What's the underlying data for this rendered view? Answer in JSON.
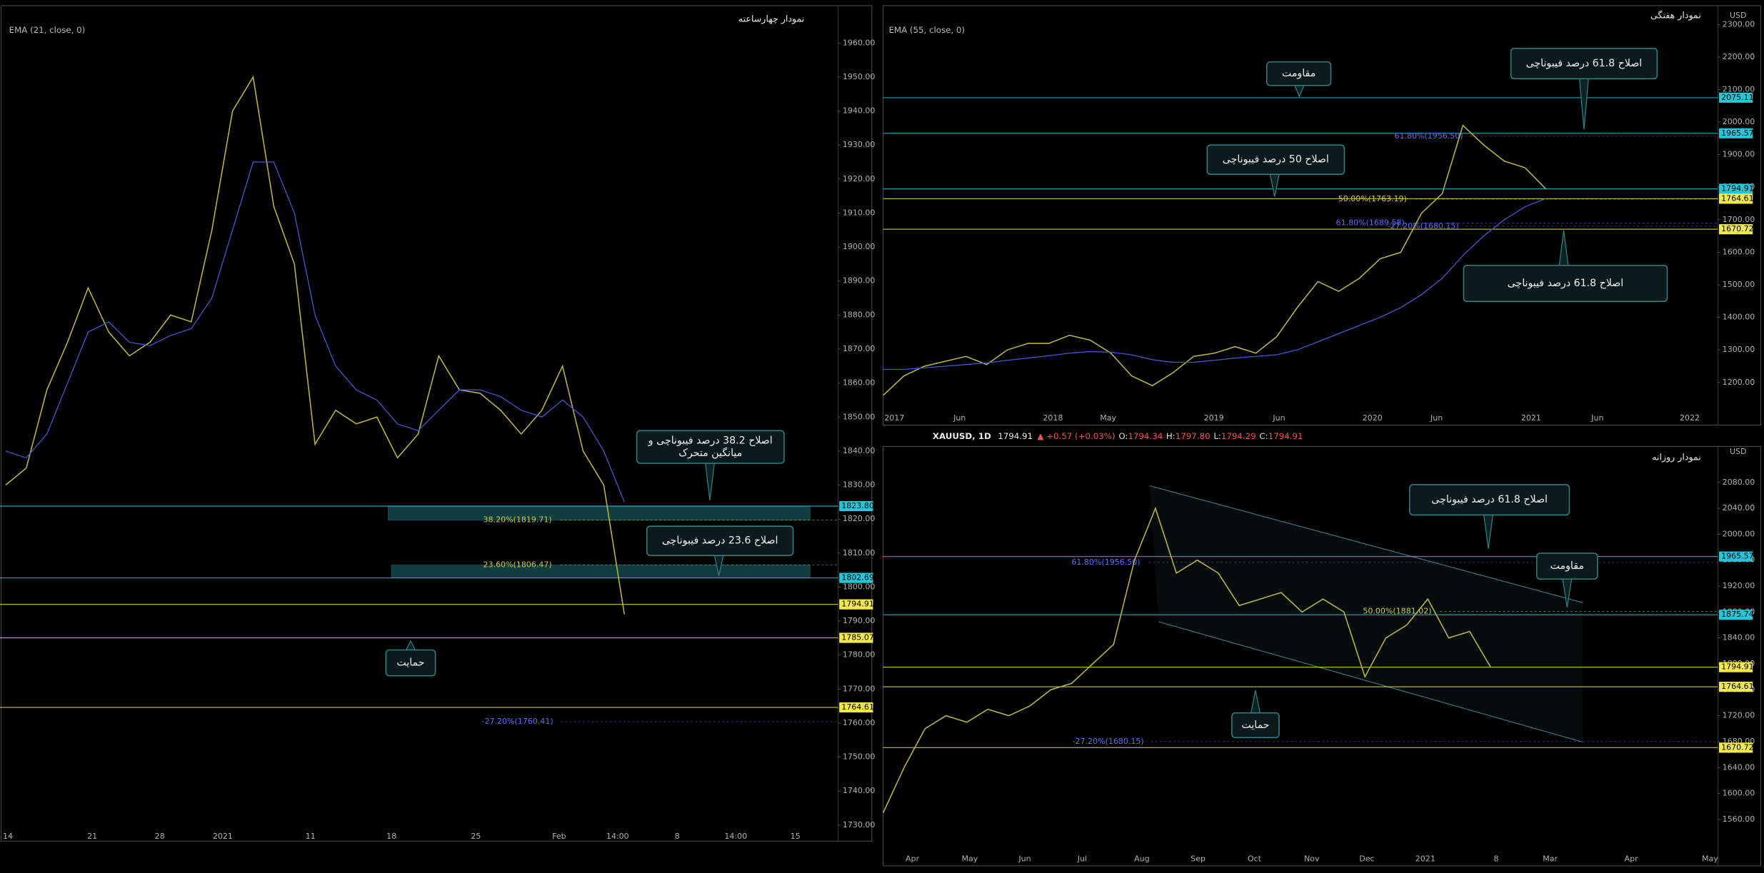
{
  "symbol_bar": {
    "symbol": "XAUUSD, 1D",
    "last": "1794.91",
    "change": "▲ +0.57 (+0.03%)",
    "ohlc": [
      {
        "label": "O:",
        "value": "1794.34"
      },
      {
        "label": "H:",
        "value": "1797.80"
      },
      {
        "label": "L:",
        "value": "1794.29"
      },
      {
        "label": "C:",
        "value": "1794.91"
      }
    ]
  },
  "chart_data": [
    {
      "type": "line",
      "title": "نمودار چهارساعته",
      "x_labels": [
        "14",
        "21",
        "28",
        "2021",
        "11",
        "18",
        "25",
        "Feb",
        "14:00",
        "8",
        "14:00",
        "15"
      ],
      "series": [
        {
          "color": "#b8b444",
          "values": [
            1830,
            1835,
            1858,
            1872,
            1888,
            1875,
            1868,
            1872,
            1880,
            1878,
            1905,
            1940,
            1950,
            1912,
            1895,
            1842,
            1852,
            1848,
            1850,
            1838,
            1845,
            1868,
            1858,
            1857,
            1852,
            1845,
            1852,
            1865,
            1840,
            1830,
            1792
          ]
        },
        {
          "name": "EMA (21, close, 0)",
          "color": "#4a56d0",
          "values": [
            1840,
            1838,
            1845,
            1860,
            1875,
            1878,
            1872,
            1871,
            1874,
            1876,
            1885,
            1905,
            1925,
            1925,
            1910,
            1880,
            1865,
            1858,
            1855,
            1848,
            1846,
            1852,
            1858,
            1858,
            1856,
            1852,
            1850,
            1855,
            1850,
            1840,
            1825
          ]
        }
      ],
      "ylim": [
        1729.6,
        1971
      ],
      "yticks": [
        {
          "value": 1730,
          "label": "1730.00"
        },
        {
          "value": 1740,
          "label": "1740.00"
        },
        {
          "value": 1750,
          "label": "1750.00"
        },
        {
          "value": 1760,
          "label": "1760.00"
        },
        {
          "value": 1770,
          "label": "1770.00"
        },
        {
          "value": 1780,
          "label": "1780.00"
        },
        {
          "value": 1790,
          "label": "1790.00"
        },
        {
          "value": 1800,
          "label": "1800.00"
        },
        {
          "value": 1810,
          "label": "1810.00"
        },
        {
          "value": 1820,
          "label": "1820.00"
        },
        {
          "value": 1830,
          "label": "1830.00"
        },
        {
          "value": 1840,
          "label": "1840.00"
        },
        {
          "value": 1850,
          "label": "1850.00"
        },
        {
          "value": 1860,
          "label": "1860.00"
        },
        {
          "value": 1870,
          "label": "1870.00"
        },
        {
          "value": 1880,
          "label": "1880.00"
        },
        {
          "value": 1890,
          "label": "1890.00"
        },
        {
          "value": 1900,
          "label": "1900.00"
        },
        {
          "value": 1910,
          "label": "1910.00"
        },
        {
          "value": 1920,
          "label": "1920.00"
        },
        {
          "value": 1930,
          "label": "1930.00"
        },
        {
          "value": 1940,
          "label": "1940.00"
        },
        {
          "value": 1950,
          "label": "1950.00"
        },
        {
          "value": 1960,
          "label": "1960.00"
        }
      ],
      "levels": [
        {
          "value": 1823.8,
          "label": "1823.80",
          "color": "#26c6da"
        },
        {
          "value": 1802.69,
          "label": "1802.69",
          "color": "#26c6da"
        },
        {
          "value": 1794.91,
          "label": "1794.91",
          "color": "#f2e94e"
        },
        {
          "value": 1785.07,
          "label": "1785.07",
          "color": "#f2e94e"
        },
        {
          "value": 1764.61,
          "label": "1764.61",
          "color": "#f2e94e"
        }
      ],
      "fibs": [
        {
          "value": 1819.71,
          "label": "38.20%(1819.71)",
          "color": "#d4c84a"
        },
        {
          "value": 1806.47,
          "label": "23.60%(1806.47)",
          "color": "#d4c84a"
        },
        {
          "value": 1760.41,
          "label": "-27.20%(1760.41)",
          "color": "#5b6cff"
        }
      ],
      "annotations": [
        [
          "اصلاح 38.2 درصد فیبوناچی و",
          "میانگین متحرک"
        ],
        [
          "اصلاح 23.6 درصد فیبوناچی"
        ],
        [
          "حمایت"
        ]
      ]
    },
    {
      "type": "line",
      "title": "نمودار هفتگی",
      "unit": "USD",
      "x_labels": [
        "2017",
        "Jun",
        "2018",
        "May",
        "2019",
        "Jun",
        "2020",
        "Jun",
        "2021",
        "Jun",
        "2022"
      ],
      "series": [
        {
          "color": "#b8b444",
          "values": [
            1160,
            1220,
            1250,
            1265,
            1280,
            1255,
            1300,
            1320,
            1320,
            1345,
            1330,
            1290,
            1220,
            1190,
            1230,
            1280,
            1290,
            1310,
            1290,
            1340,
            1430,
            1510,
            1480,
            1520,
            1580,
            1600,
            1720,
            1780,
            1990,
            1930,
            1880,
            1860,
            1795
          ]
        },
        {
          "name": "EMA (55, close, 0)",
          "color": "#4a56d0",
          "values": [
            1240,
            1240,
            1245,
            1250,
            1255,
            1260,
            1268,
            1275,
            1282,
            1290,
            1295,
            1293,
            1285,
            1270,
            1262,
            1262,
            1268,
            1275,
            1280,
            1285,
            1300,
            1325,
            1350,
            1375,
            1400,
            1430,
            1470,
            1520,
            1590,
            1650,
            1700,
            1740,
            1765
          ]
        }
      ],
      "ylim": [
        1114,
        2358
      ],
      "yticks": [
        {
          "value": 1200,
          "label": "1200.00"
        },
        {
          "value": 1300,
          "label": "1300.00"
        },
        {
          "value": 1400,
          "label": "1400.00"
        },
        {
          "value": 1500,
          "label": "1500.00"
        },
        {
          "value": 1600,
          "label": "1600.00"
        },
        {
          "value": 1700,
          "label": "1700.00"
        },
        {
          "value": 1800,
          "label": "1800.00"
        },
        {
          "value": 1900,
          "label": "1900.00"
        },
        {
          "value": 2000,
          "label": "2000.00"
        },
        {
          "value": 2100,
          "label": "2100.00"
        },
        {
          "value": 2200,
          "label": "2200.00"
        },
        {
          "value": 2300,
          "label": "2300.00"
        }
      ],
      "levels": [
        {
          "value": 2075.11,
          "label": "2075.11",
          "color": "#26c6da"
        },
        {
          "value": 1965.57,
          "label": "1965.57",
          "color": "#26c6da"
        },
        {
          "value": 1794.91,
          "label": "1794.91",
          "color": "#26c6da"
        },
        {
          "value": 1764.61,
          "label": "1764.61",
          "color": "#f2e94e"
        },
        {
          "value": 1670.72,
          "label": "1670.72",
          "color": "#f2e94e"
        }
      ],
      "fibs": [
        {
          "value": 1956.5,
          "label": "61.80%(1956.50)",
          "color": "#5b6cff"
        },
        {
          "value": 1763.19,
          "label": "50.00%(1763.19)",
          "color": "#d4c84a"
        },
        {
          "value": 1689.58,
          "label": "61.80%(1689.58)",
          "color": "#5b6cff"
        },
        {
          "value": 1680.15,
          "label": "-27.20%(1680.15)",
          "color": "#5b6cff"
        }
      ],
      "annotations": [
        [
          "مقاومت"
        ],
        [
          "اصلاح 61.8 درصد فیبوناچی"
        ],
        [
          "اصلاح 50 درصد فیبوناچی"
        ],
        [
          "اصلاح 61.8 درصد فیبوناچی"
        ]
      ]
    },
    {
      "type": "line",
      "title": "نمودار روزانه",
      "unit": "USD",
      "x_labels": [
        "Apr",
        "May",
        "Jun",
        "Jul",
        "Aug",
        "Sep",
        "Oct",
        "Nov",
        "Dec",
        "2021",
        "8",
        "Mar",
        "Apr",
        "May"
      ],
      "series": [
        {
          "color": "#b8b444",
          "values": [
            1570,
            1640,
            1700,
            1720,
            1710,
            1730,
            1720,
            1735,
            1760,
            1770,
            1800,
            1830,
            1960,
            2040,
            1940,
            1960,
            1940,
            1890,
            1900,
            1910,
            1880,
            1900,
            1880,
            1780,
            1840,
            1860,
            1900,
            1840,
            1850,
            1795
          ]
        }
      ],
      "ylim": [
        1511,
        2135.5
      ],
      "yticks": [
        {
          "value": 1560,
          "label": "1560.00"
        },
        {
          "value": 1600,
          "label": "1600.00"
        },
        {
          "value": 1640,
          "label": "1640.00"
        },
        {
          "value": 1680,
          "label": "1680.00"
        },
        {
          "value": 1720,
          "label": "1720.00"
        },
        {
          "value": 1760,
          "label": "1760.00"
        },
        {
          "value": 1800,
          "label": "1800.00"
        },
        {
          "value": 1840,
          "label": "1840.00"
        },
        {
          "value": 1880,
          "label": "1880.00"
        },
        {
          "value": 1920,
          "label": "1920.00"
        },
        {
          "value": 1960,
          "label": "1960.00"
        },
        {
          "value": 2000,
          "label": "2000.00"
        },
        {
          "value": 2040,
          "label": "2040.00"
        },
        {
          "value": 2080,
          "label": "2080.00"
        }
      ],
      "levels": [
        {
          "value": 1965.57,
          "label": "1965.57",
          "color": "#26c6da"
        },
        {
          "value": 1875.74,
          "label": "1875.74",
          "color": "#26c6da"
        },
        {
          "value": 1794.91,
          "label": "1794.91",
          "color": "#f2e94e"
        },
        {
          "value": 1764.61,
          "label": "1764.61",
          "color": "#f2e94e"
        },
        {
          "value": 1670.72,
          "label": "1670.72",
          "color": "#f2e94e"
        }
      ],
      "fibs": [
        {
          "value": 1956.5,
          "label": "61.80%(1956.50)",
          "color": "#5b6cff"
        },
        {
          "value": 1881.02,
          "label": "50.00%(1881.02)",
          "color": "#d4c84a"
        },
        {
          "value": 1680.15,
          "label": "-27.20%(1680.15)",
          "color": "#5b6cff"
        }
      ],
      "annotations": [
        [
          "اصلاح 61.8 درصد فیبوناچی"
        ],
        [
          "مقاومت"
        ],
        [
          "حمایت"
        ]
      ]
    }
  ]
}
